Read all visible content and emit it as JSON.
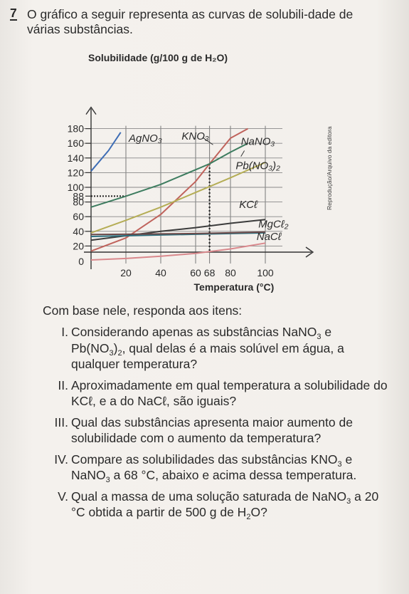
{
  "question": {
    "number": "7",
    "text": "O gráfico a seguir representa as curvas de solubili-dade de várias substâncias."
  },
  "credit": "Reprodução/Arquivo da editora",
  "chart_data": {
    "type": "line",
    "title": "Solubilidade (g/100 g de H₂O)",
    "xlabel": "Temperatura (°C)",
    "xlim": [
      0,
      120
    ],
    "ylim": [
      0,
      180
    ],
    "x_ticks": [
      "20",
      "40",
      "60",
      "68",
      "80",
      "100"
    ],
    "y_ticks": [
      "180",
      "160",
      "140",
      "120",
      "100",
      "88",
      "80",
      "60",
      "40",
      "20",
      "0"
    ],
    "reference_lines": [
      {
        "from_y": 88,
        "to_x": 68,
        "style": "dotted"
      },
      {
        "x": 68,
        "style": "dotted"
      }
    ],
    "series": [
      {
        "name": "AgNO₃",
        "color": "#3d6db5",
        "x": [
          0,
          10,
          17
        ],
        "y": [
          122,
          150,
          175
        ]
      },
      {
        "name": "KNO₃",
        "color": "#c0635c",
        "x": [
          0,
          20,
          40,
          60,
          68,
          80,
          90
        ],
        "y": [
          13,
          31,
          63,
          108,
          132,
          167,
          180
        ]
      },
      {
        "name": "NaNO₃",
        "color": "#3d7c5f",
        "x": [
          0,
          20,
          40,
          60,
          68,
          80,
          90
        ],
        "y": [
          73,
          88,
          104,
          124,
          132,
          148,
          160
        ]
      },
      {
        "name": "Pb(NO₃)₂",
        "color": "#b5ad55",
        "x": [
          0,
          20,
          40,
          60,
          80,
          100
        ],
        "y": [
          38,
          55,
          73,
          93,
          113,
          134
        ]
      },
      {
        "name": "KCℓ",
        "color": "#3c3c3c",
        "x": [
          0,
          20,
          40,
          60,
          80,
          100
        ],
        "y": [
          28,
          34,
          40,
          45,
          51,
          56
        ]
      },
      {
        "name": "MgCℓ₂",
        "color": "#2b6f7e",
        "x": [
          0,
          20,
          40,
          60,
          80,
          100
        ],
        "y": [
          33,
          34,
          35,
          36,
          37,
          38
        ]
      },
      {
        "name": "NaCℓ",
        "color": "#6b4a4a",
        "x": [
          0,
          20,
          40,
          60,
          80,
          100
        ],
        "y": [
          35.7,
          36,
          36.5,
          37,
          38,
          39
        ]
      },
      {
        "name": "",
        "color": "#d9888c",
        "x": [
          0,
          20,
          40,
          60,
          80,
          100
        ],
        "y": [
          1,
          3,
          6,
          10,
          16,
          24
        ]
      }
    ]
  },
  "instruction": "Com base nele, responda aos itens:",
  "items": [
    {
      "num": "I.",
      "parts": [
        "Considerando apenas as substâncias NaNO",
        "3",
        " e Pb(NO",
        "3",
        ")",
        "2",
        ", qual delas é a mais solúvel em água, a qualquer temperatura?"
      ]
    },
    {
      "num": "II.",
      "text": "Aproximadamente em qual temperatura a solubilidade do KCℓ, e a do NaCℓ, são iguais?"
    },
    {
      "num": "III.",
      "text": "Qual das substâncias apresenta maior aumento de solubilidade com o aumento da temperatura?"
    },
    {
      "num": "IV.",
      "parts": [
        "Compare as solubilidades das substâncias KNO",
        "3",
        " e NaNO",
        "3",
        " a 68 °C, abaixo e acima dessa temperatura."
      ]
    },
    {
      "num": "V.",
      "parts": [
        "Qual a massa de uma solução saturada de NaNO",
        "3",
        " a 20 °C obtida a partir de 500 g de H",
        "2",
        "O?"
      ]
    }
  ]
}
